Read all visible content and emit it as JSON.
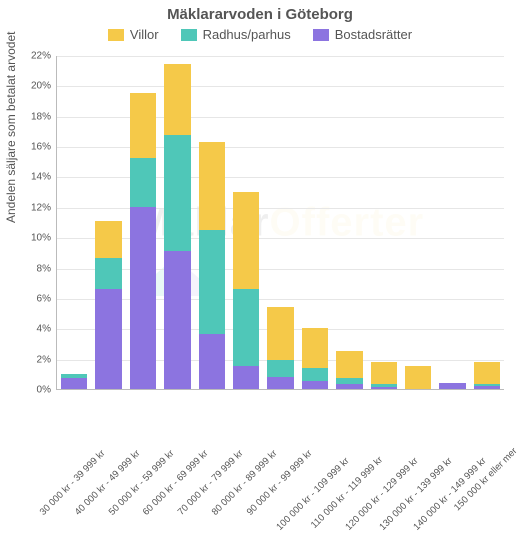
{
  "chart": {
    "type": "stacked-bar",
    "title": "Mäklararvoden i Göteborg",
    "ylabel": "Andelen säljare som betalat arvodet",
    "ylim": [
      0,
      22
    ],
    "ytick_step": 2,
    "background_color": "#ffffff",
    "grid_color": "#e6e6e6",
    "axis_color": "#bbbbbb",
    "title_fontsize": 15,
    "label_fontsize": 12,
    "tick_fontsize": 10,
    "legend": [
      {
        "label": "Villor",
        "color": "#f5c949"
      },
      {
        "label": "Radhus/parhus",
        "color": "#4fc7b8"
      },
      {
        "label": "Bostadsrätter",
        "color": "#8c74e0"
      }
    ],
    "categories": [
      "30 000 kr - 39 999 kr",
      "40 000 kr - 49 999 kr",
      "50 000 kr - 59 999 kr",
      "60 000 kr - 69 999 kr",
      "70 000 kr - 79 999 kr",
      "80 000 kr - 89 999 kr",
      "90 000 kr - 99 999 kr",
      "100 000 kr - 109 999 kr",
      "110 000 kr - 119 999 kr",
      "120 000 kr - 129 999 kr",
      "130 000 kr - 139 999 kr",
      "140 000 kr - 149 999 kr",
      "150 000 kr eller mer"
    ],
    "series": {
      "bostadsratter": [
        0.7,
        6.6,
        12.0,
        9.1,
        3.6,
        1.5,
        0.8,
        0.5,
        0.3,
        0.1,
        0.0,
        0.4,
        0.2
      ],
      "radhus": [
        0.3,
        2.0,
        3.2,
        7.6,
        6.9,
        5.1,
        1.1,
        0.9,
        0.4,
        0.2,
        0.0,
        0.0,
        0.1
      ],
      "villor": [
        0.0,
        2.5,
        4.3,
        4.7,
        5.8,
        6.4,
        3.5,
        2.6,
        1.8,
        1.5,
        1.5,
        0.0,
        1.5
      ]
    },
    "stack_order": [
      "bostadsratter",
      "radhus",
      "villor"
    ],
    "series_colors": {
      "bostadsratter": "#8c74e0",
      "radhus": "#4fc7b8",
      "villor": "#f5c949"
    },
    "watermark": {
      "text_a": "Mäklar",
      "text_b": "Offerter"
    }
  }
}
